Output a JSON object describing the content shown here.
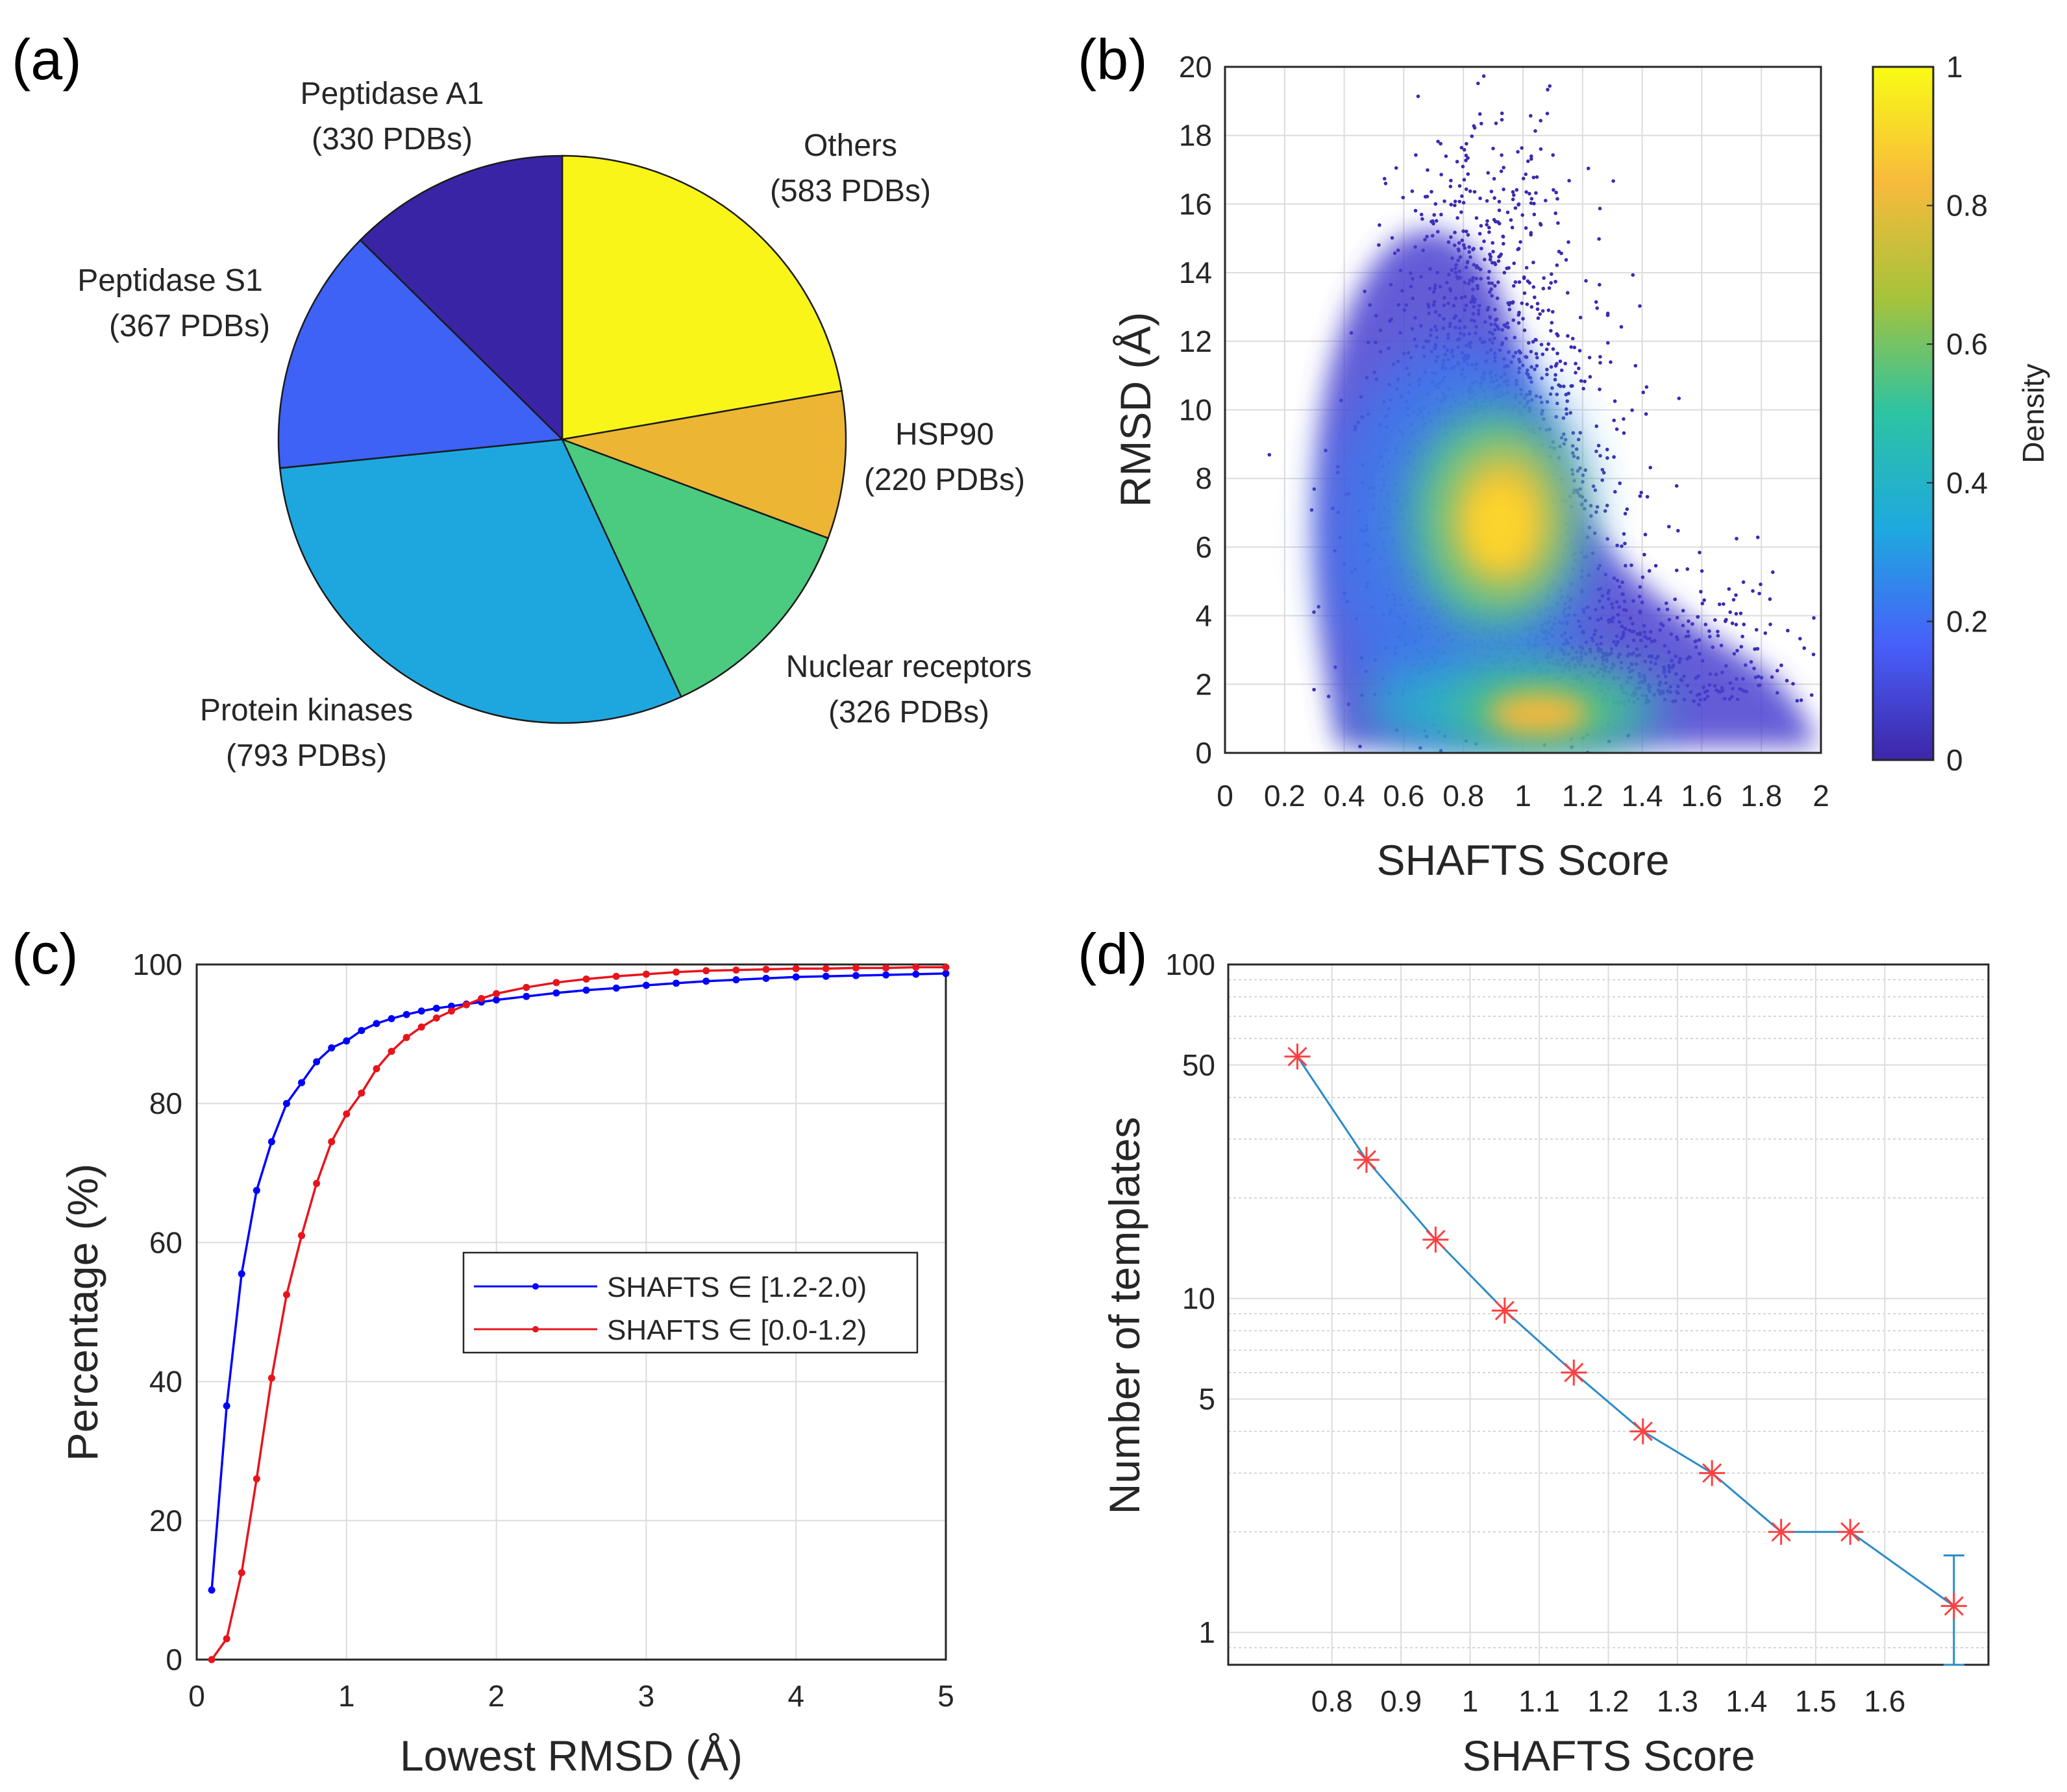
{
  "panels": {
    "a": "(a)",
    "b": "(b)",
    "c": "(c)",
    "d": "(d)"
  },
  "chart_data": [
    {
      "id": "a",
      "type": "pie",
      "title": "",
      "slices": [
        {
          "name": "Others",
          "count_label": "(583 PDBs)",
          "value": 583,
          "color": "#f9f519"
        },
        {
          "name": "HSP90",
          "count_label": "(220 PDBs)",
          "value": 220,
          "color": "#ecb534"
        },
        {
          "name": "Nuclear receptors",
          "count_label": "(326 PDBs)",
          "value": 326,
          "color": "#4acb7f"
        },
        {
          "name": "Protein kinases",
          "count_label": "(793 PDBs)",
          "value": 793,
          "color": "#1ea7df"
        },
        {
          "name": "Peptidase S1",
          "count_label": "(367 PDBs)",
          "value": 367,
          "color": "#3e61f6"
        },
        {
          "name": "Peptidase A1",
          "count_label": "(330 PDBs)",
          "value": 330,
          "color": "#3a24a6"
        }
      ]
    },
    {
      "id": "b",
      "type": "scatter",
      "subtype": "density",
      "xlabel": "SHAFTS Score",
      "ylabel": "RMSD (Å)",
      "xlim": [
        0,
        2
      ],
      "ylim": [
        0,
        20
      ],
      "xticks": [
        "0",
        "0.2",
        "0.4",
        "0.6",
        "0.8",
        "1",
        "1.2",
        "1.4",
        "1.6",
        "1.8",
        "2"
      ],
      "yticks": [
        "0",
        "2",
        "4",
        "6",
        "8",
        "10",
        "12",
        "14",
        "16",
        "18",
        "20"
      ],
      "grid": true,
      "density_peaks": [
        {
          "x": 0.95,
          "y": 6.6,
          "density": 1.0
        },
        {
          "x": 1.15,
          "y": 1.2,
          "density": 0.85
        }
      ],
      "colorbar": {
        "label": "Density",
        "ticks": [
          "0",
          "0.2",
          "0.4",
          "0.6",
          "0.8",
          "1"
        ],
        "range": [
          0,
          1
        ],
        "colors": [
          "#3e26a8",
          "#4760fa",
          "#1ea9df",
          "#2cc3a3",
          "#a6c33a",
          "#f7ba3c",
          "#f9fb15"
        ]
      }
    },
    {
      "id": "c",
      "type": "line",
      "xlabel": "Lowest RMSD (Å)",
      "ylabel": "Percentage (%)",
      "xlim": [
        0,
        5
      ],
      "ylim": [
        0,
        100
      ],
      "xticks": [
        "0",
        "1",
        "2",
        "3",
        "4",
        "5"
      ],
      "yticks": [
        "0",
        "20",
        "40",
        "60",
        "80",
        "100"
      ],
      "grid": true,
      "legend": "center-right",
      "series": [
        {
          "name": "SHAFTS ∈ [1.2-2.0)",
          "color": "#0000ff",
          "x": [
            0.1,
            0.2,
            0.3,
            0.4,
            0.5,
            0.6,
            0.7,
            0.8,
            0.9,
            1.0,
            1.1,
            1.2,
            1.3,
            1.4,
            1.5,
            1.6,
            1.7,
            1.8,
            1.9,
            2.0,
            2.2,
            2.4,
            2.6,
            2.8,
            3.0,
            3.2,
            3.4,
            3.6,
            3.8,
            4.0,
            4.2,
            4.4,
            4.6,
            4.8,
            5.0
          ],
          "values": [
            10,
            36.5,
            55.5,
            67.5,
            74.5,
            80,
            83,
            86,
            88,
            89,
            90.5,
            91.5,
            92.2,
            92.8,
            93.3,
            93.7,
            94.0,
            94.3,
            94.6,
            94.9,
            95.4,
            95.9,
            96.3,
            96.6,
            97.0,
            97.3,
            97.6,
            97.8,
            98.0,
            98.2,
            98.3,
            98.4,
            98.5,
            98.6,
            98.7
          ]
        },
        {
          "name": "SHAFTS ∈ [0.0-1.2)",
          "color": "#e8141c",
          "x": [
            0.1,
            0.2,
            0.3,
            0.4,
            0.5,
            0.6,
            0.7,
            0.8,
            0.9,
            1.0,
            1.1,
            1.2,
            1.3,
            1.4,
            1.5,
            1.6,
            1.7,
            1.8,
            1.9,
            2.0,
            2.2,
            2.4,
            2.6,
            2.8,
            3.0,
            3.2,
            3.4,
            3.6,
            3.8,
            4.0,
            4.2,
            4.4,
            4.6,
            4.8,
            5.0
          ],
          "values": [
            0,
            3,
            12.5,
            26,
            40.5,
            52.5,
            61,
            68.5,
            74.5,
            78.5,
            81.5,
            85,
            87.5,
            89.5,
            91,
            92.3,
            93.3,
            94.2,
            95.1,
            95.8,
            96.7,
            97.4,
            97.9,
            98.3,
            98.6,
            98.9,
            99.1,
            99.2,
            99.3,
            99.4,
            99.4,
            99.5,
            99.5,
            99.6,
            99.6
          ]
        }
      ]
    },
    {
      "id": "d",
      "type": "line",
      "yscale": "log",
      "xlabel": "SHAFTS Score",
      "ylabel": "Number of templates",
      "xlim": [
        0.65,
        1.75
      ],
      "ylim": [
        0.8,
        100
      ],
      "xticks": [
        "0.8",
        "0.9",
        "1",
        "1.1",
        "1.2",
        "1.3",
        "1.4",
        "1.5",
        "1.6"
      ],
      "yticks": [
        "1",
        "5",
        "10",
        "50",
        "100"
      ],
      "grid": true,
      "line_color": "#2b8bc6",
      "marker_color": "#ff4040",
      "series": [
        {
          "name": "templates",
          "x": [
            0.75,
            0.85,
            0.95,
            1.05,
            1.15,
            1.25,
            1.35,
            1.45,
            1.55,
            1.7
          ],
          "values": [
            53,
            26,
            15,
            9.2,
            6,
            4,
            3,
            2,
            2,
            1.2
          ]
        }
      ],
      "error_bar": {
        "x": 1.7,
        "low": 0.8,
        "high": 1.7
      }
    }
  ]
}
